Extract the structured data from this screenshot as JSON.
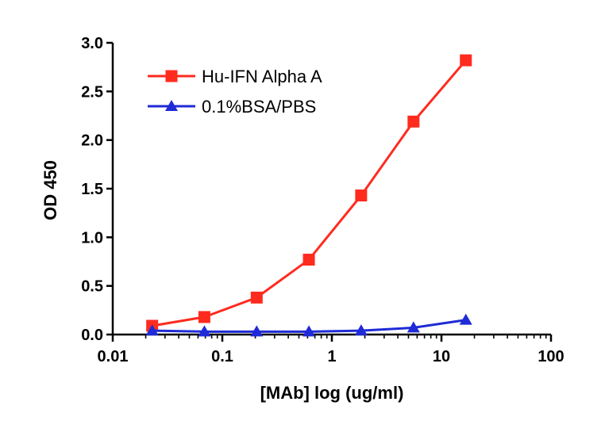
{
  "chart_data": {
    "type": "line",
    "title": "",
    "xlabel": "[MAb] log (ug/ml)",
    "ylabel": "OD 450",
    "xscale": "log",
    "xlim": [
      0.01,
      100
    ],
    "ylim": [
      0,
      3.0
    ],
    "x_tick_labels": [
      "0.01",
      "0.1",
      "1",
      "10",
      "100"
    ],
    "y_tick_labels": [
      "0.0",
      "0.5",
      "1.0",
      "1.5",
      "2.0",
      "2.5",
      "3.0"
    ],
    "x_ticks": [
      0.01,
      0.1,
      1,
      10,
      100
    ],
    "y_ticks": [
      0,
      0.5,
      1.0,
      1.5,
      2.0,
      2.5,
      3.0
    ],
    "grid": false,
    "legend_position": "top-left",
    "series": [
      {
        "name": "Hu-IFN Alpha A",
        "color": "#ff2b1f",
        "marker": "square",
        "x": [
          0.0229,
          0.0686,
          0.206,
          0.617,
          1.85,
          5.56,
          16.7
        ],
        "values": [
          0.09,
          0.18,
          0.38,
          0.77,
          1.43,
          2.19,
          2.82
        ]
      },
      {
        "name": "0.1%BSA/PBS",
        "color": "#1f2bd6",
        "marker": "triangle",
        "x": [
          0.0229,
          0.0686,
          0.206,
          0.617,
          1.85,
          5.56,
          16.7
        ],
        "values": [
          0.04,
          0.03,
          0.03,
          0.03,
          0.04,
          0.07,
          0.15
        ]
      }
    ]
  }
}
